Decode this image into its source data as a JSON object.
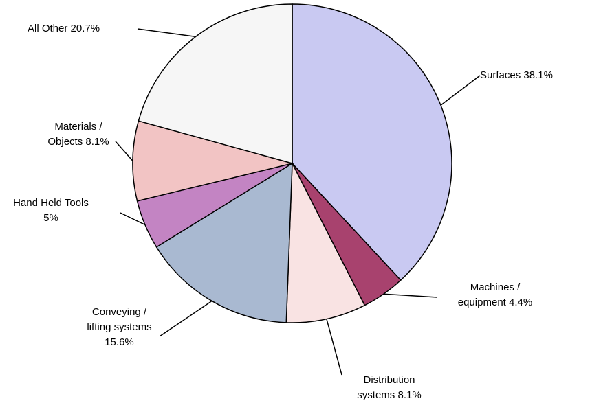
{
  "chart_data": {
    "type": "pie",
    "categories": [
      "Surfaces",
      "Machines / equipment",
      "Distribution systems",
      "Conveying / lifting systems",
      "Hand Held Tools",
      "Materials / Objects",
      "All Other"
    ],
    "values": [
      38.1,
      4.4,
      8.1,
      15.6,
      5,
      8.1,
      20.7
    ],
    "value_labels": [
      "38.1%",
      "4.4%",
      "8.1%",
      "15.6%",
      "5%",
      "8.1%",
      "20.7%"
    ],
    "colors": [
      "#c9c9f2",
      "#a8426e",
      "#f9e3e3",
      "#a9b9d1",
      "#c384c3",
      "#f2c4c4",
      "#f6f6f6"
    ]
  }
}
